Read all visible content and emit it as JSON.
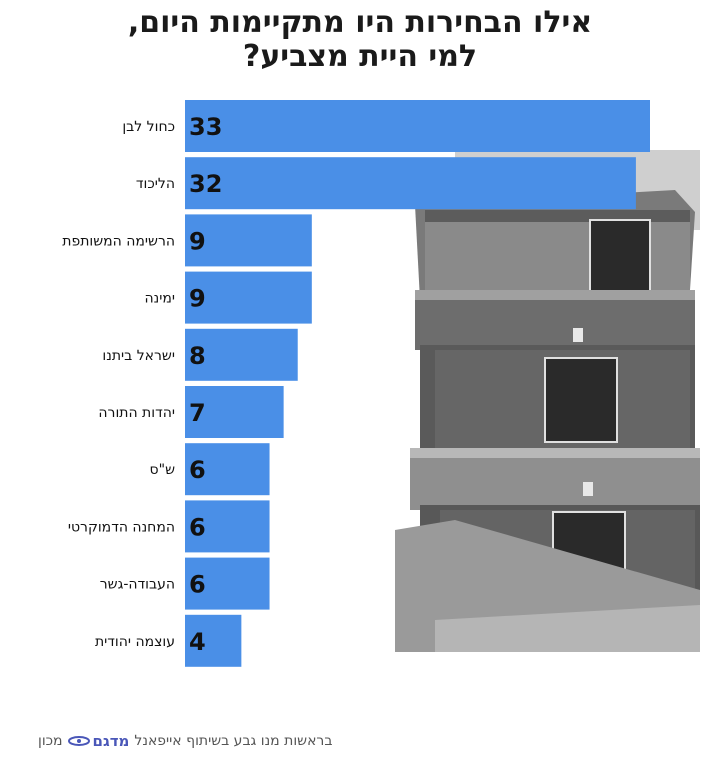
{
  "title": {
    "line1": "אילו הבחירות היו מתקיימות היום,",
    "line2": "למי היית מצביע?"
  },
  "colors": {
    "bar": "#4a8fe7",
    "text": "#111111",
    "logo": "#4a57b8"
  },
  "footer": {
    "institute": "מכון",
    "logo_name": "מדגם",
    "credit": "בראשות מנו גבע בשיתוף אייפאנל"
  },
  "chart_data": {
    "type": "bar",
    "orientation": "horizontal",
    "categories": [
      "כחול לבן",
      "הליכוד",
      "הרשימה המשותפת",
      "ימינה",
      "ישראל ביתנו",
      "יהדות התורה",
      "ש\"ס",
      "המחנה הדמוקרטי",
      "העבודה-גשר",
      "עוצמה יהודית"
    ],
    "values": [
      33,
      32,
      9,
      9,
      8,
      7,
      6,
      6,
      6,
      4
    ],
    "title": "אילו הבחירות היו מתקיימות היום, למי היית מצביע?",
    "xlabel": "",
    "ylabel": "",
    "xlim": [
      0,
      33
    ],
    "grid": false,
    "data_labels": true
  }
}
